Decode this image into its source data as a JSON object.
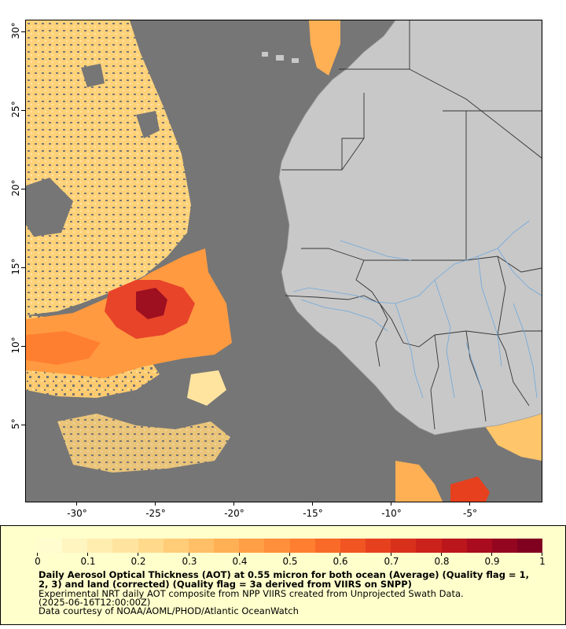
{
  "map": {
    "lat_labels": [
      "30°",
      "25°",
      "20°",
      "15°",
      "10°",
      "5°"
    ],
    "lon_labels": [
      "-30°",
      "-25°",
      "-20°",
      "-15°",
      "-10°",
      "-5°"
    ],
    "colors": {
      "no_data": "#767676",
      "land": "#c8c8c8",
      "rivers": "#6fa8dc",
      "borders": "#333333"
    }
  },
  "legend": {
    "ticks": [
      "0",
      "0.1",
      "0.2",
      "0.3",
      "0.4",
      "0.5",
      "0.6",
      "0.7",
      "0.8",
      "0.9",
      "1"
    ],
    "title": "Daily Aerosol Optical Thickness (AOT) at 0.55 micron for both ocean (Average) (Quality flag = 1, 2, 3) and land (corrected) (Quality flag = 3a derived from VIIRS on SNPP)",
    "line1": "Experimental NRT daily AOT composite from NPP VIIRS created from Unprojected Swath Data.",
    "line2": "(2025-06-16T12:00:00Z)",
    "line3": "Data courtesy of NOAA/AOML/PHOD/Atlantic OceanWatch",
    "colorbar_colors": [
      "#fffdd0",
      "#fff5c0",
      "#ffedb0",
      "#ffe4a0",
      "#ffd98c",
      "#ffcc78",
      "#ffbf66",
      "#ffb055",
      "#ffa046",
      "#ff8f3a",
      "#ff7e30",
      "#f96a28",
      "#f05522",
      "#e6401e",
      "#d9301c",
      "#cc221c",
      "#bb161c",
      "#a80c1e",
      "#940620",
      "#800020"
    ]
  }
}
